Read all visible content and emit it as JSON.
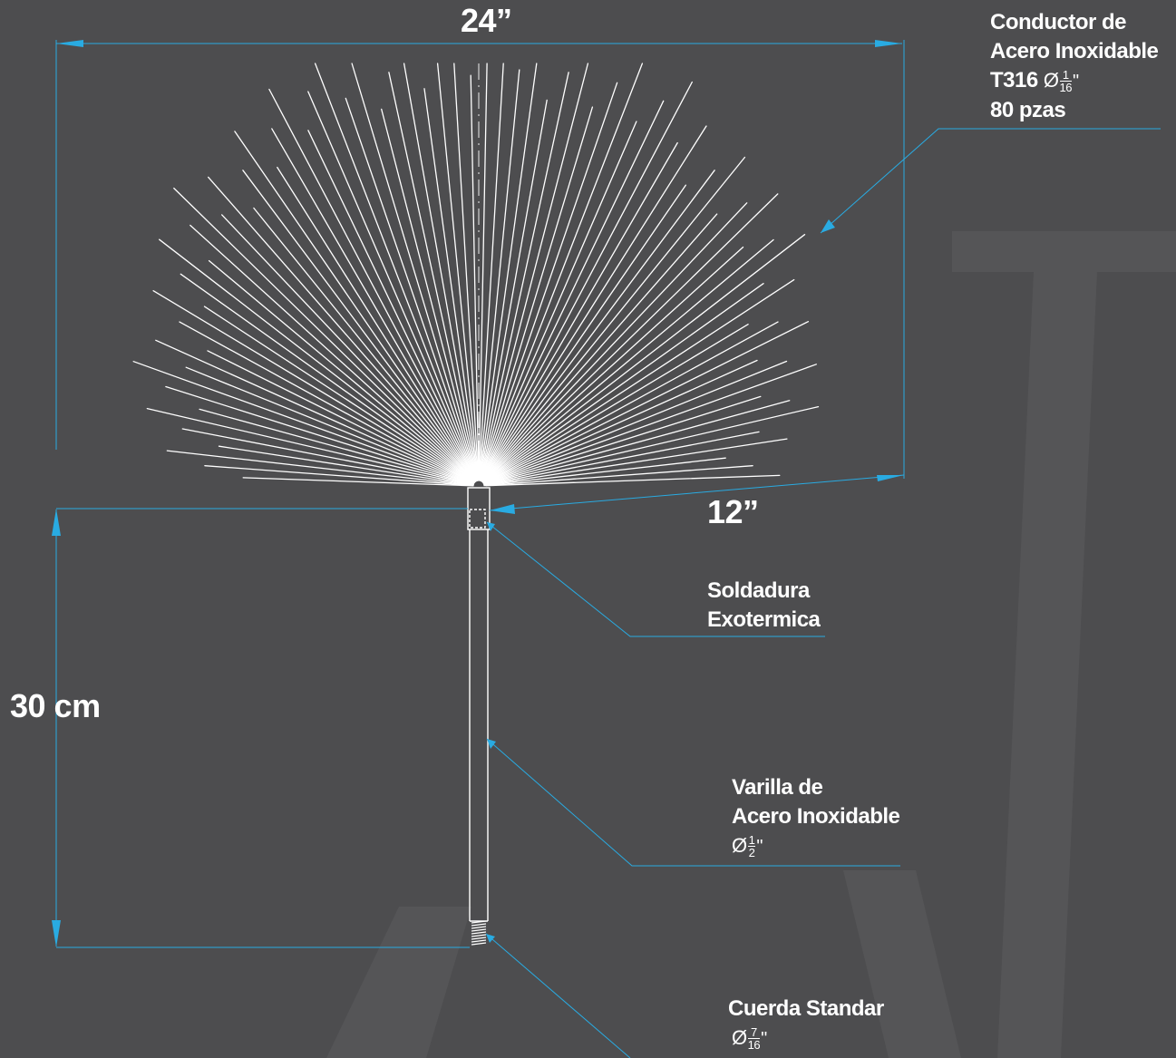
{
  "colors": {
    "background": "#4d4d4f",
    "dimension_line": "#29abe2",
    "drawing_line": "#ffffff"
  },
  "dimensions": {
    "width": "24”",
    "radius": "12”",
    "height": "30 cm"
  },
  "callouts": {
    "conductor": {
      "line1": "Conductor de",
      "line2": "Acero Inoxidable",
      "line3": "T316",
      "dia_symbol": "Ø",
      "frac_num": "1",
      "frac_den": "16",
      "unit": "\"",
      "line4": "80 pzas"
    },
    "soldadura": {
      "line1": "Soldadura",
      "line2": "Exotermica"
    },
    "varilla": {
      "line1": "Varilla de",
      "line2": "Acero Inoxidable",
      "dia_symbol": "Ø",
      "frac_num": "1",
      "frac_den": "2",
      "unit": "\""
    },
    "cuerda": {
      "line1": "Cuerda Standar",
      "dia_symbol": "Ø",
      "frac_num": "7",
      "frac_den": "16",
      "unit": "\""
    }
  }
}
